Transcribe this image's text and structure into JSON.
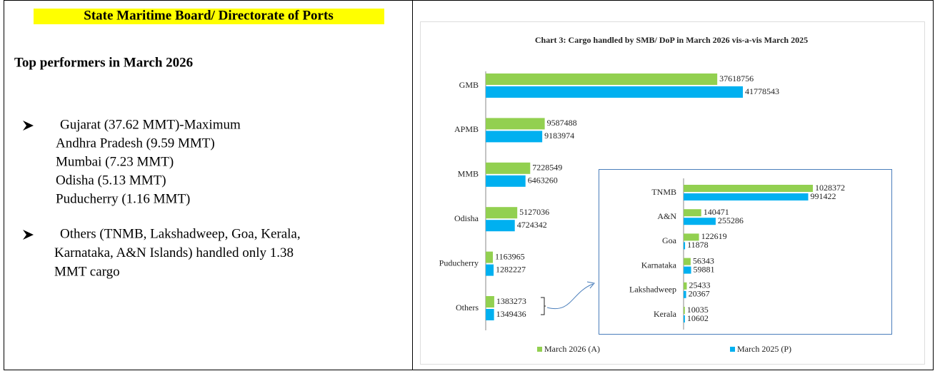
{
  "header": {
    "title": "State Maritime Board/ Directorate of Ports"
  },
  "subtitle": "Top performers in March 2026",
  "bullets": [
    {
      "lines": [
        "Gujarat (37.62 MMT)-Maximum",
        "Andhra Pradesh (9.59 MMT)",
        "Mumbai (7.23 MMT)",
        "Odisha (5.13 MMT)",
        "Puducherry (1.16 MMT)"
      ]
    },
    {
      "lines": [
        "Others (TNMB, Lakshadweep, Goa, Kerala,",
        "Karnataka, A&N Islands) handled only 1.38",
        "MMT cargo"
      ]
    }
  ],
  "chart_data": [
    {
      "type": "bar",
      "horizontal": true,
      "title": "Chart 3: Cargo handled by SMB/ DoP in March 2026 vis-a-vis  March 2025",
      "categories": [
        "GMB",
        "APMB",
        "MMB",
        "Odisha",
        "Puducherry",
        "Others"
      ],
      "series": [
        {
          "name": "March 2026 (A)",
          "color": "#92d050",
          "values": [
            37618756,
            9587488,
            7228549,
            5127036,
            1163965,
            1383273
          ]
        },
        {
          "name": "March 2025 (P)",
          "color": "#00b0f0",
          "values": [
            41778543,
            9183974,
            6463260,
            4724342,
            1282227,
            1349436
          ]
        }
      ]
    },
    {
      "type": "bar",
      "horizontal": true,
      "categories": [
        "TNMB",
        "A&N",
        "Goa",
        "Karnataka",
        "Lakshadweep",
        "Kerala"
      ],
      "series": [
        {
          "color": "#92d050",
          "values": [
            1028372,
            140471,
            122619,
            56343,
            25433,
            10035
          ]
        },
        {
          "color": "#00b0f0",
          "values": [
            991422,
            255286,
            11878,
            59881,
            20367,
            10602
          ]
        }
      ]
    }
  ]
}
